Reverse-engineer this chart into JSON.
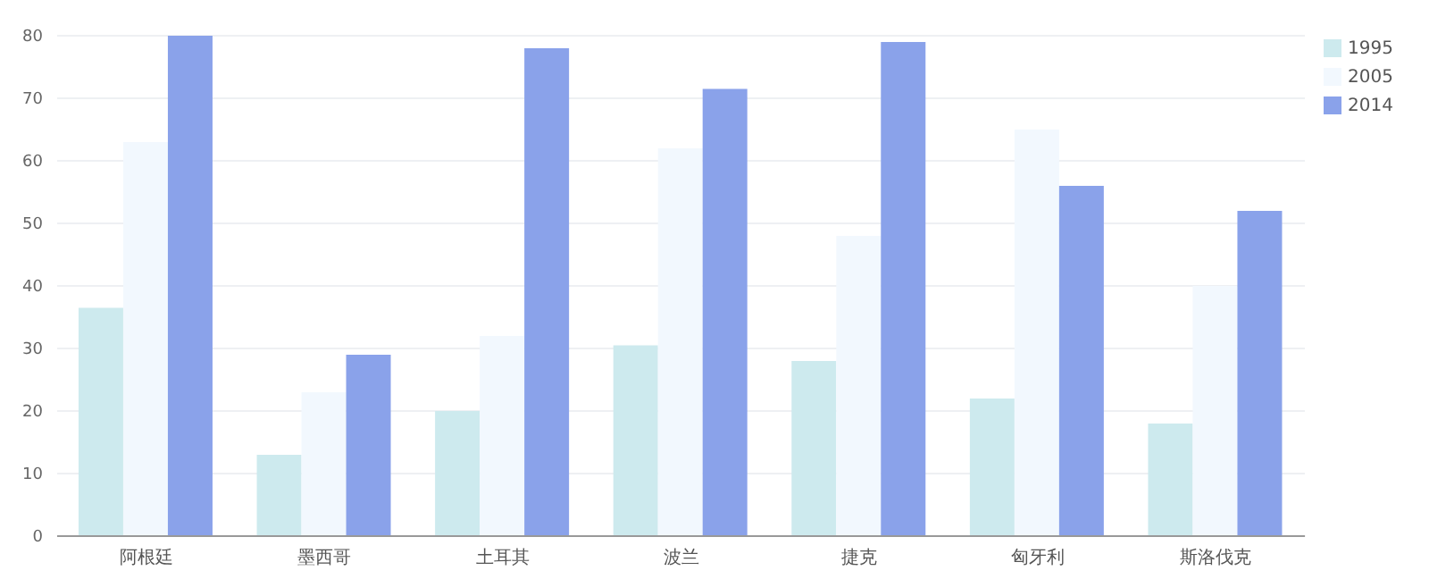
{
  "chart_data": {
    "type": "bar",
    "categories": [
      "阿根廷",
      "墨西哥",
      "土耳其",
      "波兰",
      "捷克",
      "匈牙利",
      "斯洛伐克"
    ],
    "series": [
      {
        "name": "1995",
        "color": "#cdeaee",
        "values": [
          36.5,
          13,
          20,
          30.5,
          28,
          22,
          18
        ]
      },
      {
        "name": "2005",
        "color": "#f2f8fe",
        "values": [
          63,
          23,
          32,
          62,
          48,
          65,
          40
        ]
      },
      {
        "name": "2014",
        "color": "#8aa2ea",
        "values": [
          80,
          29,
          78,
          71.5,
          79,
          56,
          52
        ]
      }
    ],
    "ylim": [
      0,
      80
    ],
    "yticks": [
      0,
      10,
      20,
      30,
      40,
      50,
      60,
      70,
      80
    ],
    "grid": "y",
    "legend": "top right"
  }
}
